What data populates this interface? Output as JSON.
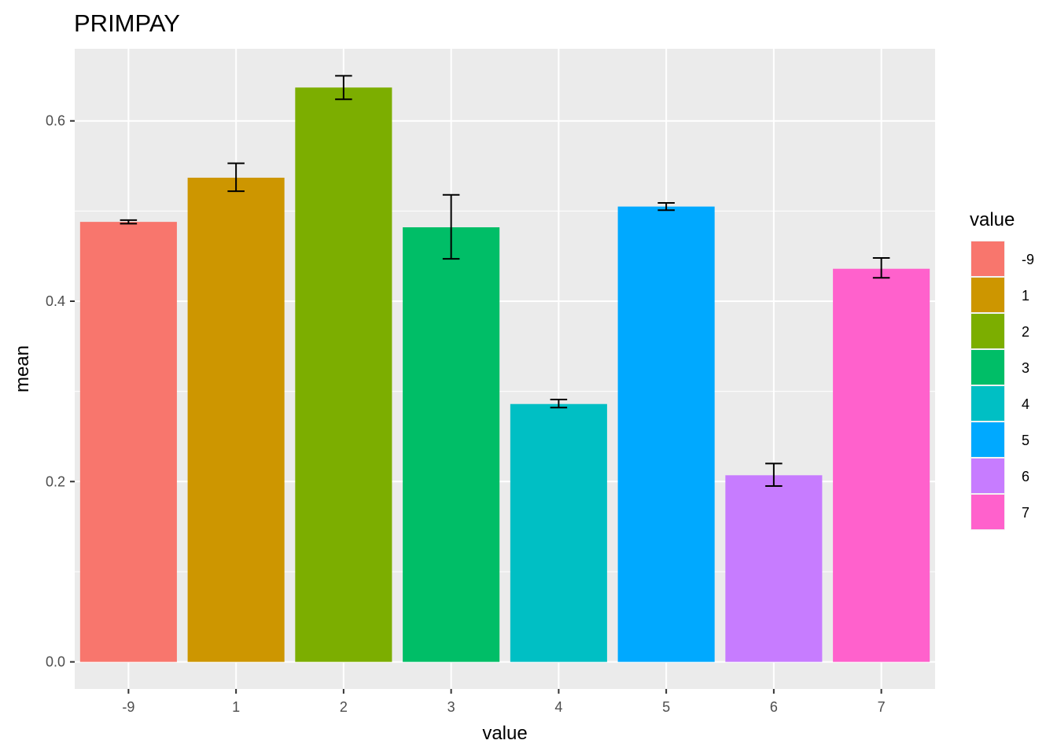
{
  "chart_data": {
    "type": "bar",
    "title": "PRIMPAY",
    "xlabel": "value",
    "ylabel": "mean",
    "categories": [
      "-9",
      "1",
      "2",
      "3",
      "4",
      "5",
      "6",
      "7"
    ],
    "values": [
      0.488,
      0.537,
      0.637,
      0.482,
      0.286,
      0.505,
      0.207,
      0.436
    ],
    "error_low": [
      0.486,
      0.522,
      0.624,
      0.447,
      0.282,
      0.501,
      0.195,
      0.426
    ],
    "error_high": [
      0.49,
      0.553,
      0.65,
      0.518,
      0.291,
      0.509,
      0.22,
      0.448
    ],
    "colors": [
      "#F8766D",
      "#CD9600",
      "#7CAE00",
      "#00BE67",
      "#00BFC4",
      "#00A9FF",
      "#C77CFF",
      "#FF61CC"
    ],
    "ylim": [
      -0.03,
      0.68
    ],
    "yticks": [
      0.0,
      0.2,
      0.4,
      0.6
    ],
    "ytick_labels": [
      "0.0",
      "0.2",
      "0.4",
      "0.6"
    ],
    "grid": true,
    "panel_background": "#EBEBEB",
    "legend": {
      "title": "value",
      "position": "right",
      "entries": [
        "-9",
        "1",
        "2",
        "3",
        "4",
        "5",
        "6",
        "7"
      ]
    }
  }
}
